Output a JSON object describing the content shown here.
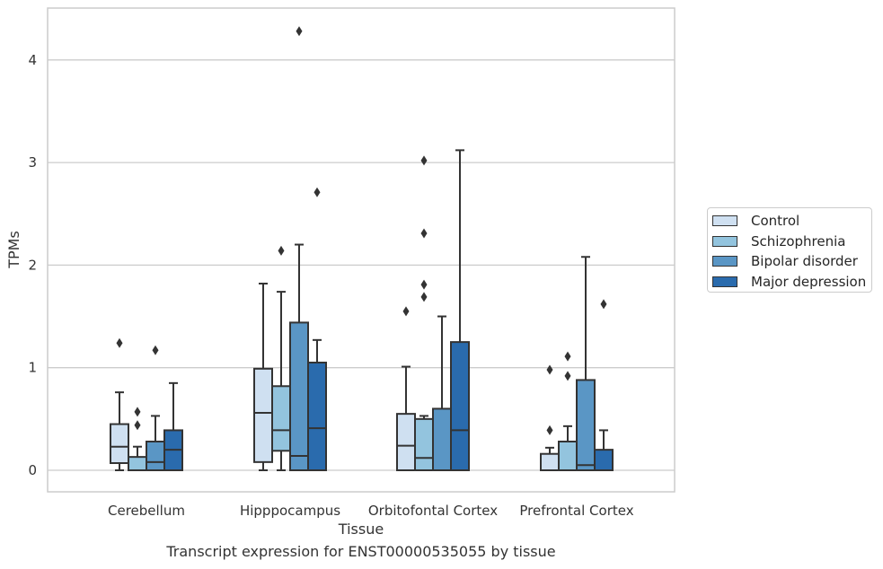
{
  "chart_data": {
    "type": "boxplot",
    "title": "",
    "caption": "Transcript expression for ENST00000535055 by tissue",
    "xlabel": "Tissue",
    "ylabel": "TPMs",
    "ylim": [
      -0.2,
      4.5
    ],
    "yticks": [
      0,
      1,
      2,
      3,
      4
    ],
    "grid": "horizontal",
    "legend_position": "right",
    "categories": [
      "Cerebellum",
      "Hipppocampus",
      "Orbitofontal Cortex",
      "Prefrontal Cortex"
    ],
    "series": [
      {
        "name": "Control",
        "color": "#cfe0f1",
        "boxes": [
          {
            "min": 0.0,
            "q1": 0.07,
            "median": 0.23,
            "q3": 0.45,
            "max": 0.76,
            "outliers": [
              1.24
            ]
          },
          {
            "min": 0.0,
            "q1": 0.08,
            "median": 0.56,
            "q3": 0.99,
            "max": 1.82,
            "outliers": []
          },
          {
            "min": 0.0,
            "q1": 0.0,
            "median": 0.24,
            "q3": 0.55,
            "max": 1.01,
            "outliers": [
              1.55
            ]
          },
          {
            "min": 0.0,
            "q1": 0.0,
            "median": 0.0,
            "q3": 0.16,
            "max": 0.22,
            "outliers": [
              0.39,
              0.98
            ]
          }
        ]
      },
      {
        "name": "Schizophrenia",
        "color": "#93c4de",
        "boxes": [
          {
            "min": 0.0,
            "q1": 0.0,
            "median": 0.0,
            "q3": 0.13,
            "max": 0.23,
            "outliers": [
              0.44,
              0.57
            ]
          },
          {
            "min": 0.0,
            "q1": 0.19,
            "median": 0.39,
            "q3": 0.82,
            "max": 1.74,
            "outliers": [
              2.14
            ]
          },
          {
            "min": 0.0,
            "q1": 0.0,
            "median": 0.12,
            "q3": 0.5,
            "max": 0.53,
            "outliers": [
              1.69,
              1.81,
              2.31,
              3.02
            ]
          },
          {
            "min": 0.0,
            "q1": 0.0,
            "median": 0.0,
            "q3": 0.28,
            "max": 0.43,
            "outliers": [
              0.92,
              1.11
            ]
          }
        ]
      },
      {
        "name": "Bipolar disorder",
        "color": "#5a96c5",
        "boxes": [
          {
            "min": 0.0,
            "q1": 0.0,
            "median": 0.08,
            "q3": 0.28,
            "max": 0.53,
            "outliers": [
              1.17
            ]
          },
          {
            "min": 0.0,
            "q1": 0.0,
            "median": 0.14,
            "q3": 1.44,
            "max": 2.2,
            "outliers": [
              4.28
            ]
          },
          {
            "min": 0.0,
            "q1": 0.0,
            "median": 0.0,
            "q3": 0.6,
            "max": 1.5,
            "outliers": []
          },
          {
            "min": 0.0,
            "q1": 0.0,
            "median": 0.05,
            "q3": 0.88,
            "max": 2.08,
            "outliers": []
          }
        ]
      },
      {
        "name": "Major depression",
        "color": "#2a6bad",
        "boxes": [
          {
            "min": 0.0,
            "q1": 0.0,
            "median": 0.2,
            "q3": 0.39,
            "max": 0.85,
            "outliers": []
          },
          {
            "min": 0.0,
            "q1": 0.0,
            "median": 0.41,
            "q3": 1.05,
            "max": 1.27,
            "outliers": [
              2.71
            ]
          },
          {
            "min": 0.0,
            "q1": 0.0,
            "median": 0.39,
            "q3": 1.25,
            "max": 3.12,
            "outliers": []
          },
          {
            "min": 0.0,
            "q1": 0.0,
            "median": 0.0,
            "q3": 0.2,
            "max": 0.39,
            "outliers": [
              1.62
            ]
          }
        ]
      }
    ]
  }
}
